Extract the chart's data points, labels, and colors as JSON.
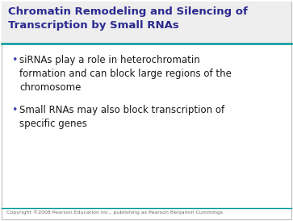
{
  "title_line1": "Chromatin Remodeling and Silencing of",
  "title_line2": "Transcription by Small RNAs",
  "title_color": "#2B2B8F",
  "title_fontsize": 9.5,
  "bullet1_line1": "siRNAs play a role in heterochromatin",
  "bullet1_line2": "formation and can block large regions of the",
  "bullet1_line3": "chromosome",
  "bullet2_line1": "Small RNAs may also block transcription of",
  "bullet2_line2": "specific genes",
  "bullet_color": "#1a1a1a",
  "bullet_fontsize": 8.5,
  "bg_color": "#FFFFFF",
  "border_color": "#BBBBBB",
  "title_bg_color": "#EEEEEE",
  "line_color": "#009999",
  "footer_text": "Copyright ©2008 Pearson Education Inc., publishing as Pearson Benjamin Cummings",
  "footer_color": "#666666",
  "footer_fontsize": 4.5,
  "bullet_dot_color": "#4444AA"
}
